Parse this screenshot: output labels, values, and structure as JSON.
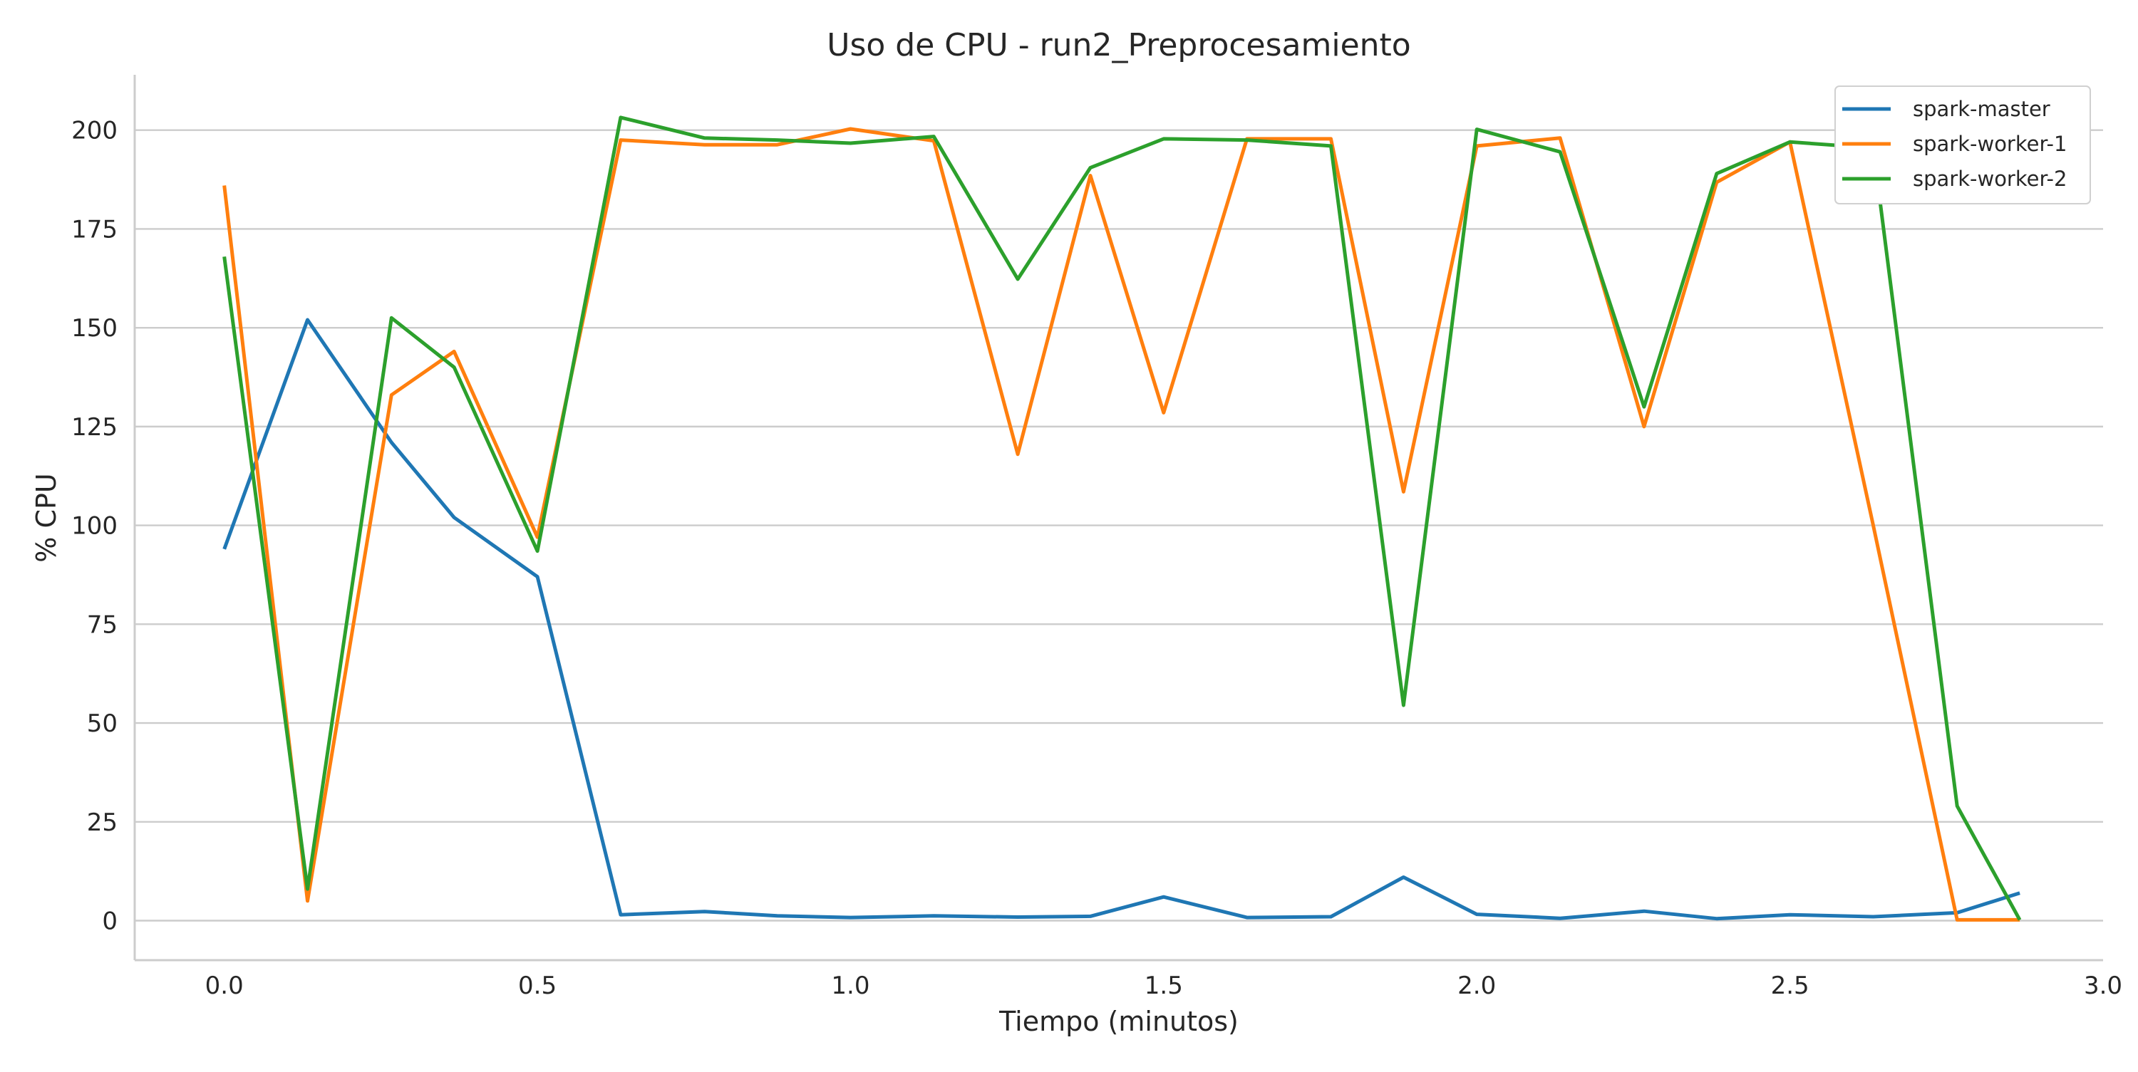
{
  "chart_data": {
    "type": "line",
    "title": "Uso de CPU - run2_Preprocesamiento",
    "xlabel": "Tiempo (minutos)",
    "ylabel": "% CPU",
    "xlim": [
      -0.143,
      3.0
    ],
    "ylim": [
      -10,
      214
    ],
    "xticks": [
      0.0,
      0.5,
      1.0,
      1.5,
      2.0,
      2.5,
      3.0
    ],
    "xtick_labels": [
      "0.0",
      "0.5",
      "1.0",
      "1.5",
      "2.0",
      "2.5",
      "3.0"
    ],
    "yticks": [
      0,
      25,
      50,
      75,
      100,
      125,
      150,
      175,
      200
    ],
    "ytick_labels": [
      "0",
      "25",
      "50",
      "75",
      "100",
      "125",
      "150",
      "175",
      "200"
    ],
    "grid": "horizontal",
    "legend_position": "top-right",
    "x": [
      0.0,
      0.133,
      0.267,
      0.367,
      0.5,
      0.633,
      0.767,
      0.883,
      1.0,
      1.133,
      1.267,
      1.383,
      1.5,
      1.633,
      1.767,
      1.883,
      2.0,
      2.133,
      2.267,
      2.383,
      2.5,
      2.633,
      2.767,
      2.867
    ],
    "series": [
      {
        "name": "spark-master",
        "color": "#1f77b4",
        "values": [
          94,
          152,
          121,
          102,
          87,
          1.5,
          2.3,
          1.2,
          0.8,
          1.2,
          0.9,
          1.1,
          6,
          0.8,
          1,
          11,
          1.6,
          0.6,
          2.4,
          0.5,
          1.5,
          1,
          2,
          7
        ]
      },
      {
        "name": "spark-worker-1",
        "color": "#ff7f0e",
        "values": [
          186,
          5,
          133,
          144,
          97,
          197.5,
          196.3,
          196.3,
          200.3,
          197.3,
          118,
          188.5,
          128.5,
          197.8,
          197.8,
          108.5,
          196,
          198,
          125,
          186.8,
          197,
          100,
          0.2,
          0.2
        ]
      },
      {
        "name": "spark-worker-2",
        "color": "#2ca02c",
        "values": [
          168,
          8,
          152.5,
          140,
          93.5,
          203.2,
          198,
          197.5,
          196.7,
          198.4,
          162.3,
          190.5,
          197.8,
          197.5,
          196,
          54.5,
          200.2,
          194.5,
          130,
          189,
          197,
          195.5,
          29,
          0.2
        ]
      }
    ]
  }
}
